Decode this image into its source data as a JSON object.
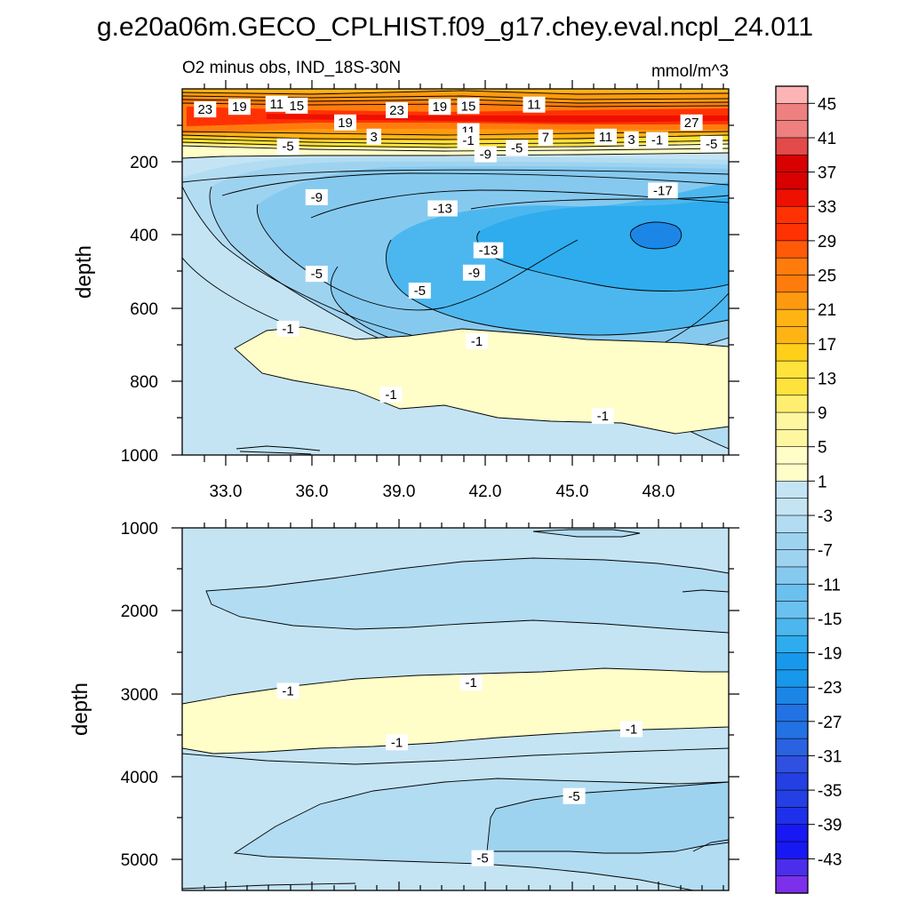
{
  "figure_title": "g.e20a06m.GECO_CPLHIST.f09_g17.chey.eval.ncpl_24.011",
  "colors": {
    "positive_scale": [
      "#fffdc8",
      "#fff6a0",
      "#ffee70",
      "#ffe23c",
      "#ffcf1a",
      "#ffb414",
      "#ff9a10",
      "#ff7c0c",
      "#ff5a08",
      "#ff3204",
      "#ee1000",
      "#d80000",
      "#e34a4a",
      "#ef8080",
      "#fcb4b4"
    ],
    "negative_scale": [
      "#c4e4f4",
      "#b2dcf2",
      "#9ed3f0",
      "#86c9ef",
      "#6ac0ef",
      "#4cb7ef",
      "#2eacee",
      "#1798eb",
      "#1c86e6",
      "#2272e4",
      "#2a62e2",
      "#2f50e0",
      "#243fe4",
      "#1e30ea",
      "#1818f4",
      "#4a2eec",
      "#7c30ea"
    ],
    "contour_line": "#000000",
    "frame": "#000000"
  },
  "chart_data": [
    {
      "type": "contour",
      "panel": "upper",
      "left_label": "O2 minus obs, IND_18S-30N",
      "right_label": "mmol/m^3",
      "ylabel": "depth",
      "xlim": [
        31.5,
        50.6
      ],
      "ylim": [
        1000,
        20
      ],
      "xticks": [
        33,
        36,
        39,
        42,
        45,
        48
      ],
      "xtick_labels": [
        "33.0",
        "36.0",
        "39.0",
        "42.0",
        "45.0",
        "48.0"
      ],
      "yticks": [
        200,
        400,
        600,
        800,
        1000
      ],
      "ytick_labels": [
        "200",
        "400",
        "600",
        "800",
        "1000"
      ],
      "contour_labels": [
        {
          "text": "23",
          "x": 32.3,
          "y": 75
        },
        {
          "text": "19",
          "x": 33.5,
          "y": 68
        },
        {
          "text": "11",
          "x": 34.8,
          "y": 60
        },
        {
          "text": "15",
          "x": 35.5,
          "y": 65
        },
        {
          "text": "19",
          "x": 37.2,
          "y": 110
        },
        {
          "text": "3",
          "x": 38.2,
          "y": 148
        },
        {
          "text": "23",
          "x": 39.0,
          "y": 77
        },
        {
          "text": "19",
          "x": 40.5,
          "y": 68
        },
        {
          "text": "15",
          "x": 41.5,
          "y": 66
        },
        {
          "text": "11",
          "x": 43.8,
          "y": 62
        },
        {
          "text": "11",
          "x": 41.5,
          "y": 133
        },
        {
          "text": "-1",
          "x": 41.5,
          "y": 158
        },
        {
          "text": "7",
          "x": 44.2,
          "y": 150
        },
        {
          "text": "11",
          "x": 46.3,
          "y": 148
        },
        {
          "text": "3",
          "x": 47.2,
          "y": 155
        },
        {
          "text": "-1",
          "x": 48.1,
          "y": 157
        },
        {
          "text": "27",
          "x": 49.3,
          "y": 110
        },
        {
          "text": "-5",
          "x": 50.0,
          "y": 167
        },
        {
          "text": "-5",
          "x": 35.2,
          "y": 174
        },
        {
          "text": "-5",
          "x": 43.2,
          "y": 178
        },
        {
          "text": "-9",
          "x": 42.1,
          "y": 195
        },
        {
          "text": "-9",
          "x": 36.2,
          "y": 310
        },
        {
          "text": "-13",
          "x": 40.6,
          "y": 340
        },
        {
          "text": "-17",
          "x": 48.3,
          "y": 292
        },
        {
          "text": "-13",
          "x": 42.2,
          "y": 452
        },
        {
          "text": "-9",
          "x": 41.7,
          "y": 512
        },
        {
          "text": "-5",
          "x": 36.2,
          "y": 515
        },
        {
          "text": "-5",
          "x": 39.8,
          "y": 560
        },
        {
          "text": "-1",
          "x": 35.2,
          "y": 662
        },
        {
          "text": "-1",
          "x": 41.8,
          "y": 695
        },
        {
          "text": "-1",
          "x": 38.8,
          "y": 838
        },
        {
          "text": "-1",
          "x": 46.2,
          "y": 895
        }
      ]
    },
    {
      "type": "contour",
      "panel": "lower",
      "ylabel": "depth",
      "xlim": [
        31.5,
        50.6
      ],
      "ylim": [
        5380,
        1000
      ],
      "yticks": [
        1000,
        2000,
        3000,
        4000,
        5000
      ],
      "ytick_labels": [
        "1000",
        "2000",
        "3000",
        "4000",
        "5000"
      ],
      "contour_labels": [
        {
          "text": "-1",
          "x": 35.2,
          "y": 2970
        },
        {
          "text": "-1",
          "x": 41.6,
          "y": 2870
        },
        {
          "text": "-1",
          "x": 39.0,
          "y": 3590
        },
        {
          "text": "-1",
          "x": 47.2,
          "y": 3430
        },
        {
          "text": "-5",
          "x": 45.2,
          "y": 4240
        },
        {
          "text": "-5",
          "x": 42.0,
          "y": 4990
        }
      ]
    }
  ],
  "colorbar": {
    "labels": [
      "45",
      "41",
      "37",
      "33",
      "29",
      "25",
      "21",
      "17",
      "13",
      "9",
      "5",
      "1",
      "-3",
      "-7",
      "-11",
      "-15",
      "-19",
      "-23",
      "-27",
      "-31",
      "-35",
      "-39",
      "-43"
    ]
  }
}
